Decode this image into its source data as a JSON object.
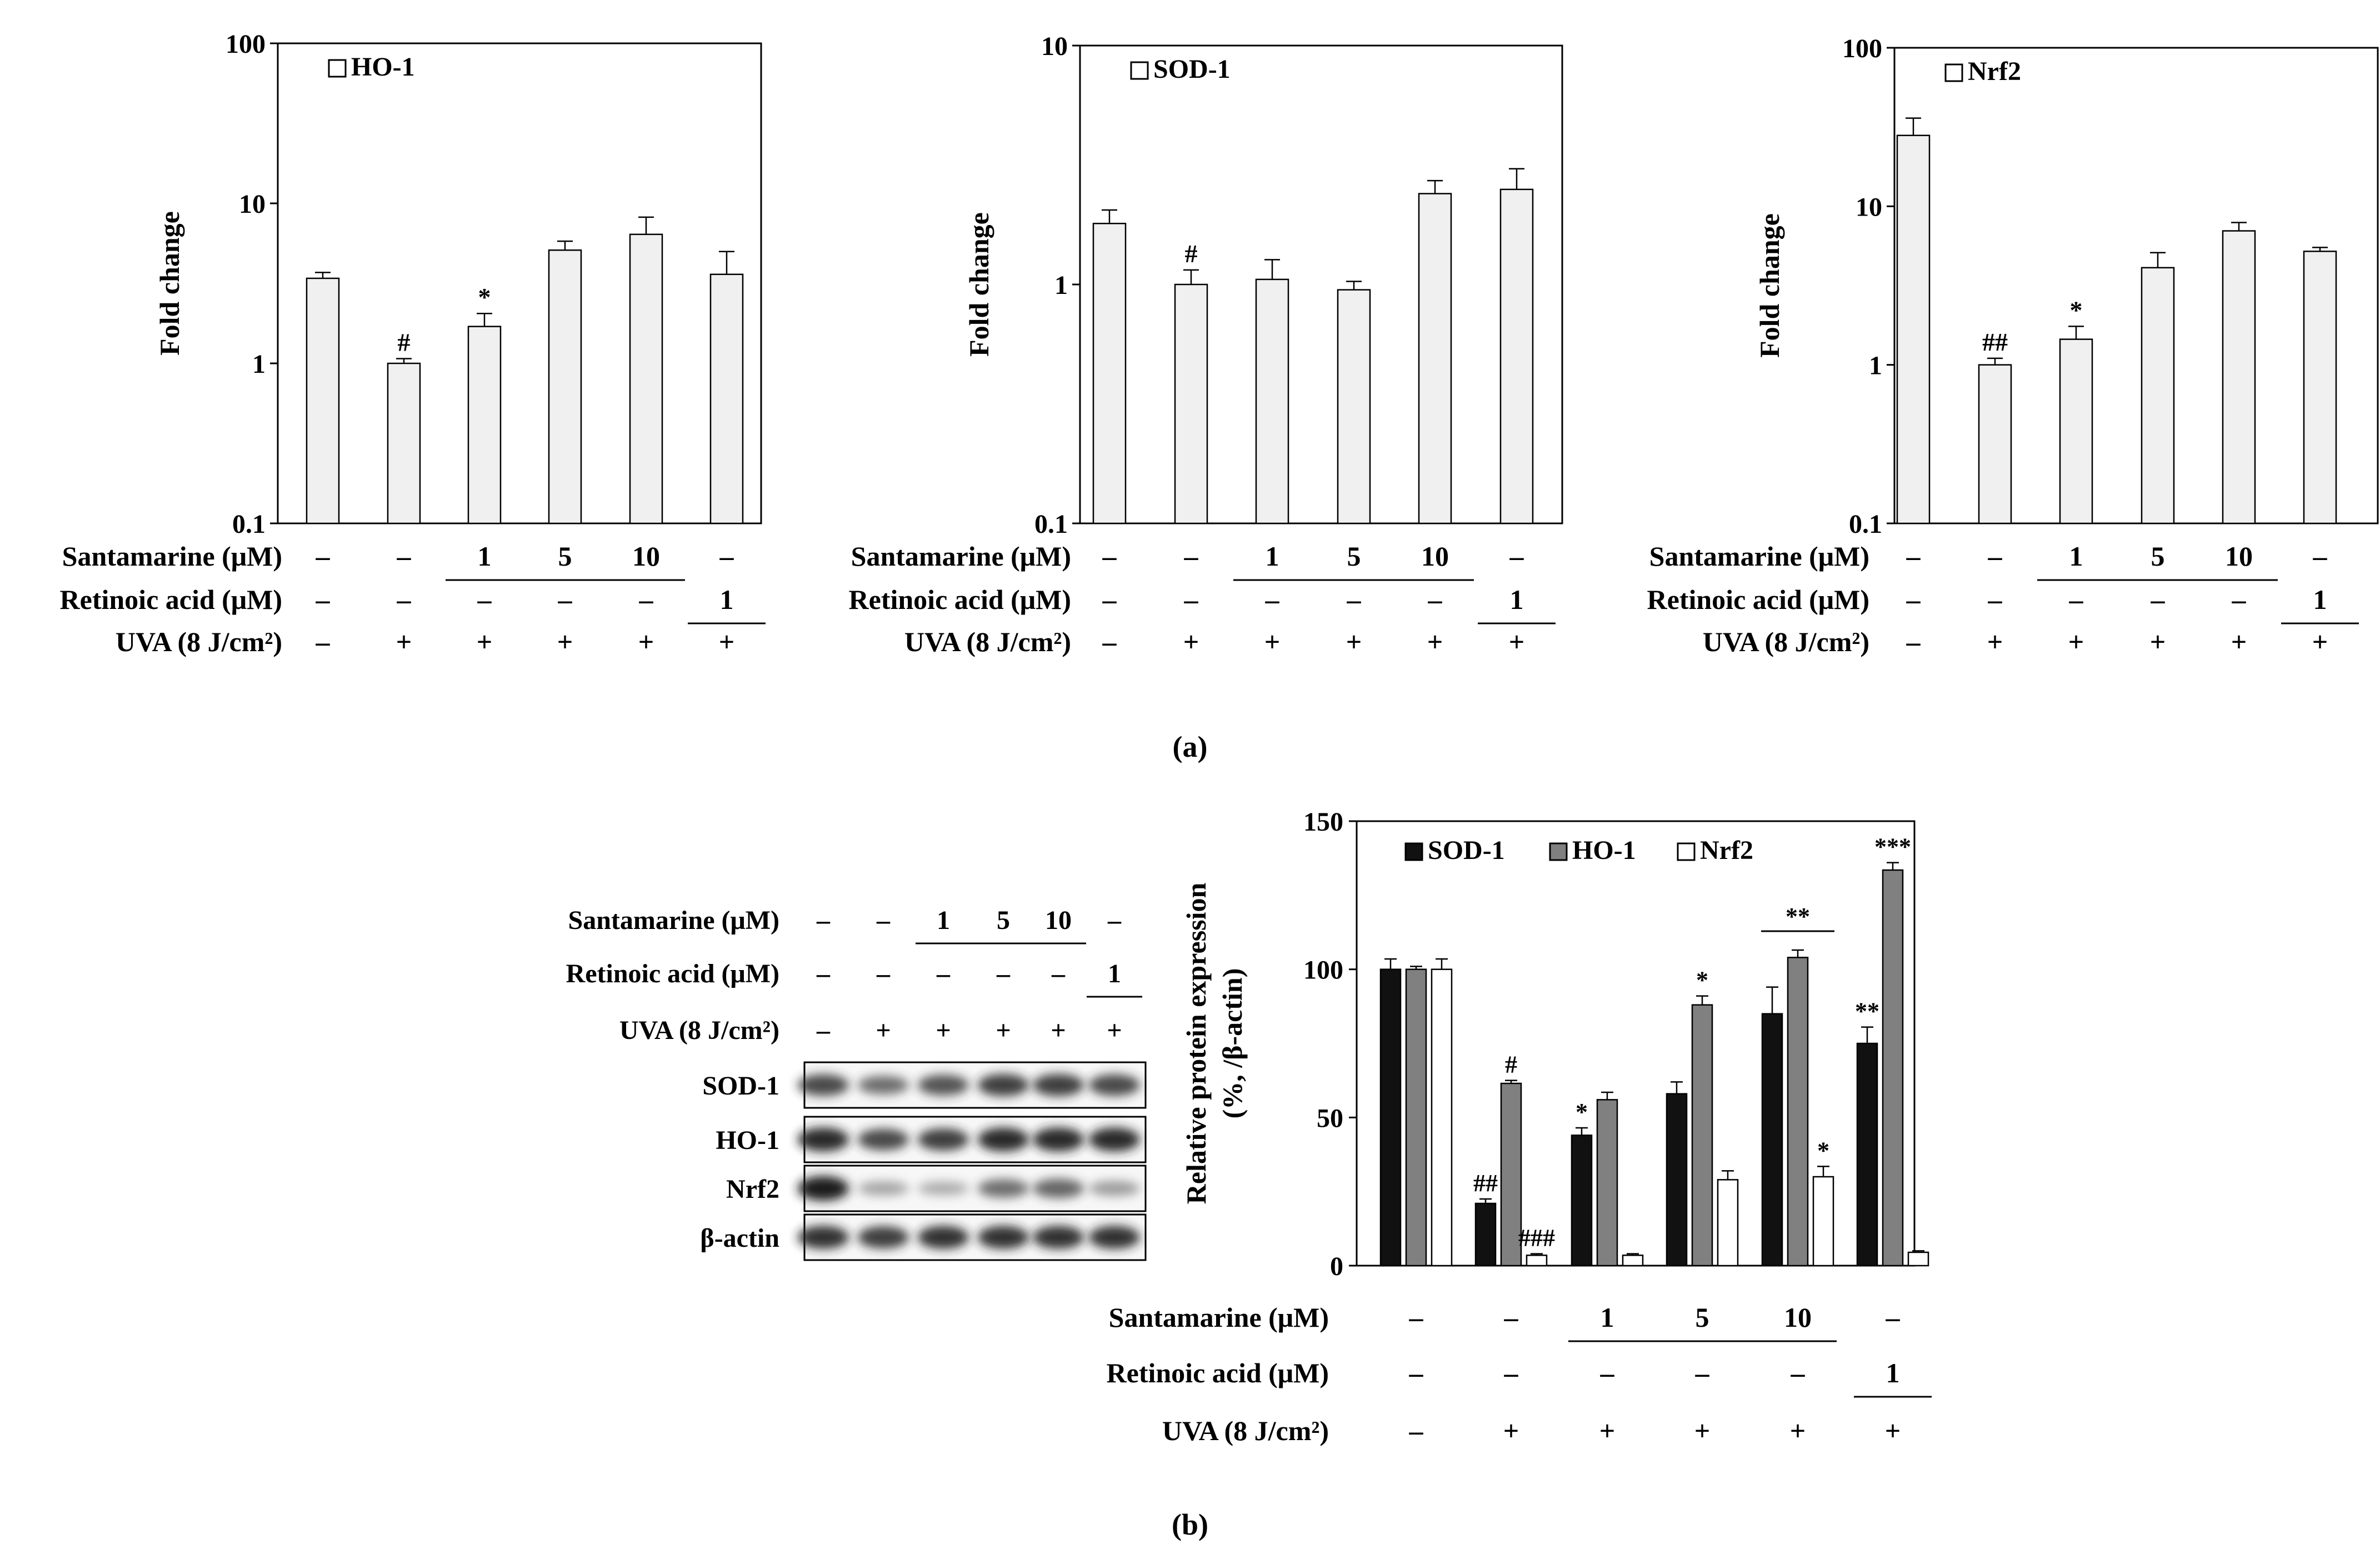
{
  "chart_data": [
    {
      "type": "bar",
      "panel": "a",
      "ylabel": "Fold change",
      "yscale": "log",
      "ylim": [
        0.1,
        100
      ],
      "yticks": [
        "0.1",
        "1",
        "10",
        "100"
      ],
      "legend": "HO-1",
      "legend_position": "top-left",
      "bar_color": "#f0f0f0",
      "categories": [
        "1",
        "2",
        "3",
        "4",
        "5",
        "6"
      ],
      "values": [
        3.4,
        1.0,
        1.7,
        5.1,
        6.4,
        3.6
      ],
      "errors": [
        0.3,
        0.07,
        0.35,
        0.7,
        1.8,
        1.4
      ],
      "annotations": [
        {
          "index": 1,
          "text": "#"
        },
        {
          "index": 2,
          "text": "*"
        },
        {
          "text": "**",
          "span": [
            3,
            5
          ]
        }
      ]
    },
    {
      "type": "bar",
      "panel": "a",
      "ylabel": "Fold change",
      "yscale": "log",
      "ylim": [
        0.1,
        10
      ],
      "yticks": [
        "0.1",
        "1",
        "10"
      ],
      "legend": "SOD-1",
      "legend_position": "top-left",
      "bar_color": "#f0f0f0",
      "categories": [
        "1",
        "2",
        "3",
        "4",
        "5",
        "6"
      ],
      "values": [
        1.8,
        1.0,
        1.05,
        0.95,
        2.4,
        2.5
      ],
      "errors": [
        0.25,
        0.15,
        0.22,
        0.08,
        0.32,
        0.55
      ],
      "annotations": [
        {
          "index": 1,
          "text": "#"
        },
        {
          "text": "*",
          "span": [
            4,
            5
          ]
        }
      ]
    },
    {
      "type": "bar",
      "panel": "a",
      "ylabel": "Fold change",
      "yscale": "log",
      "ylim": [
        0.1,
        100
      ],
      "yticks": [
        "0.1",
        "1",
        "10",
        "100"
      ],
      "legend": "Nrf2",
      "legend_position": "top-left",
      "bar_color": "#f0f0f0",
      "categories": [
        "1",
        "2",
        "3",
        "4",
        "5",
        "6"
      ],
      "values": [
        28,
        1.0,
        1.45,
        4.1,
        7.0,
        5.2
      ],
      "errors": [
        8,
        0.1,
        0.3,
        1.0,
        0.9,
        0.3
      ],
      "annotations": [
        {
          "index": 1,
          "text": "##"
        },
        {
          "index": 2,
          "text": "*"
        },
        {
          "text": "**",
          "span": [
            3,
            5
          ]
        }
      ]
    },
    {
      "type": "bar",
      "panel": "b",
      "ylabel": "Relative protein expression",
      "ylabel2": "(%, /β-actin)",
      "ylim": [
        0,
        150
      ],
      "yticks": [
        "0",
        "50",
        "100",
        "150"
      ],
      "legend_position": "top",
      "categories": [
        "1",
        "2",
        "3",
        "4",
        "5",
        "6"
      ],
      "series": [
        {
          "name": "SOD-1",
          "color": "#111111",
          "values": [
            100,
            21,
            44,
            58,
            85,
            75
          ],
          "errors": [
            3.5,
            1.5,
            2.5,
            4,
            9,
            5.5
          ],
          "labels": [
            "",
            "##",
            "*",
            "",
            "",
            "**"
          ]
        },
        {
          "name": "HO-1",
          "color": "#808080",
          "values": [
            100,
            61.5,
            56,
            88,
            104,
            133.5
          ],
          "errors": [
            1,
            1,
            2.5,
            3,
            2.5,
            2.5
          ],
          "labels": [
            "",
            "#",
            "",
            "*",
            "",
            "***"
          ]
        },
        {
          "name": "Nrf2",
          "color": "#ffffff",
          "values": [
            100,
            3.5,
            3.5,
            29,
            30,
            4.5
          ],
          "errors": [
            3.5,
            0.5,
            0.5,
            3,
            3.5,
            0.5
          ],
          "labels": [
            "",
            "###",
            "",
            "",
            "*",
            ""
          ]
        }
      ],
      "annotations": [
        {
          "text": "**",
          "group": 4
        }
      ]
    }
  ],
  "treatments": [
    {
      "label": "Santamarine (μM)",
      "values": [
        "–",
        "–",
        "1",
        "5",
        "10",
        "–"
      ],
      "underline": [
        2,
        4
      ]
    },
    {
      "label": "Retinoic acid (μM)",
      "values": [
        "–",
        "–",
        "–",
        "–",
        "–",
        "1"
      ],
      "underline": [
        5,
        5
      ]
    },
    {
      "label": "UVA (8 J/cm²)",
      "values": [
        "–",
        "+",
        "+",
        "+",
        "+",
        "+"
      ]
    }
  ],
  "blot": {
    "rows": [
      {
        "label": "SOD-1",
        "intensity": [
          0.8,
          0.6,
          0.75,
          0.85,
          0.85,
          0.8
        ]
      },
      {
        "label": "HO-1",
        "intensity": [
          0.95,
          0.8,
          0.85,
          0.95,
          0.95,
          0.95
        ]
      },
      {
        "label": "Nrf2",
        "intensity": [
          1.0,
          0.3,
          0.25,
          0.6,
          0.65,
          0.35
        ]
      },
      {
        "label": "β-actin",
        "intensity": [
          0.9,
          0.85,
          0.9,
          0.9,
          0.9,
          0.9
        ]
      }
    ]
  },
  "panel_labels": {
    "a": "(a)",
    "b": "(b)"
  }
}
